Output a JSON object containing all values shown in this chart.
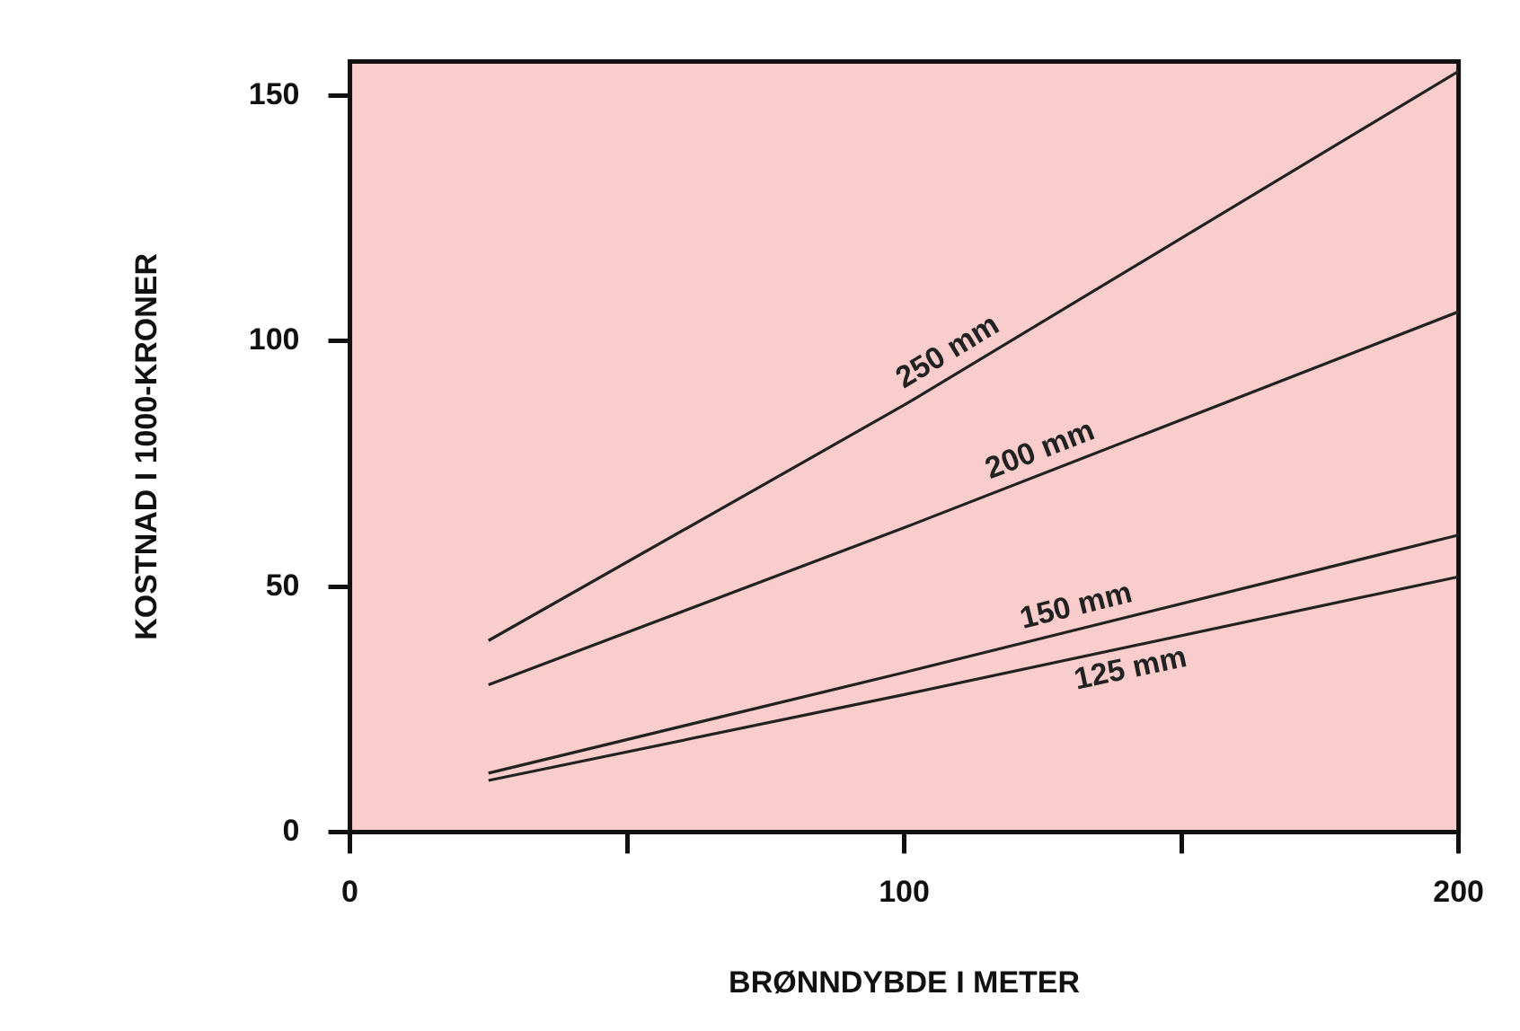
{
  "chart_data": {
    "type": "line",
    "xlabel": "BRØNNDYBDE I METER",
    "ylabel": "KOSTNAD I 1000-KRONER",
    "xlim": [
      0,
      200
    ],
    "xticks": [
      0,
      {
        "value": 50,
        "label": null
      },
      100,
      {
        "value": 150,
        "label": null
      },
      200
    ],
    "ylim": [
      0,
      157
    ],
    "yticks": [
      0,
      50,
      100,
      150
    ],
    "grid": false,
    "legend": false,
    "marker": "none",
    "line_style": "solid",
    "series": [
      {
        "name": "250 mm",
        "color": "#222222",
        "x": [
          25,
          100,
          200
        ],
        "values": [
          39,
          87,
          155
        ]
      },
      {
        "name": "200 mm",
        "color": "#222222",
        "x": [
          25,
          100,
          200
        ],
        "values": [
          30,
          62,
          106
        ]
      },
      {
        "name": "150 mm",
        "color": "#222222",
        "x": [
          25,
          100,
          200
        ],
        "values": [
          12,
          32.5,
          60.5
        ]
      },
      {
        "name": "125 mm",
        "color": "#222222",
        "x": [
          25,
          100,
          200
        ],
        "values": [
          10.5,
          28,
          52
        ]
      }
    ]
  }
}
